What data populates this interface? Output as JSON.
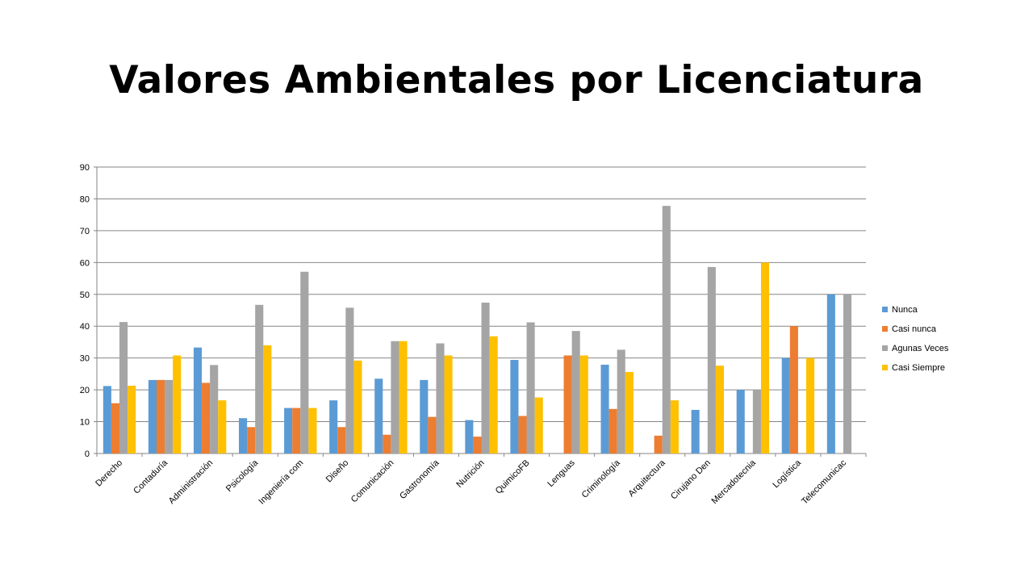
{
  "slide": {
    "title": "Valores Ambientales por Licenciatura"
  },
  "chart_data": {
    "type": "bar",
    "title": "",
    "xlabel": "",
    "ylabel": "",
    "ylim": [
      0,
      90
    ],
    "yticks": [
      0,
      10,
      20,
      30,
      40,
      50,
      60,
      70,
      80,
      90
    ],
    "grid": true,
    "legend_position": "right",
    "categories": [
      "Derecho",
      "Contaduría",
      "Administración",
      "Psicología",
      "Ingeniería com",
      "Diseño",
      "Comunicación",
      "Gastronomía",
      "Nutrición",
      "QuimicoFB",
      "Lenguas",
      "Criminología",
      "Arquitectura",
      "Cirujano Den",
      "Mercadotecnia",
      "Logística",
      "Telecomunicac"
    ],
    "series": [
      {
        "name": "Nunca",
        "color": "#5B9BD5",
        "values": [
          21.2,
          23.1,
          33.3,
          11.1,
          14.3,
          16.7,
          23.5,
          23.1,
          10.5,
          29.4,
          0,
          27.9,
          0,
          13.7,
          20,
          30,
          50
        ]
      },
      {
        "name": "Casi nunca",
        "color": "#ED7D31",
        "values": [
          15.8,
          23.1,
          22.2,
          8.3,
          14.3,
          8.3,
          5.9,
          11.5,
          5.3,
          11.8,
          30.8,
          14,
          5.6,
          0,
          0,
          40,
          0
        ]
      },
      {
        "name": "Agunas Veces",
        "color": "#A5A5A5",
        "values": [
          41.3,
          23.1,
          27.8,
          46.7,
          57.1,
          45.8,
          35.3,
          34.6,
          47.4,
          41.2,
          38.5,
          32.6,
          77.8,
          58.6,
          20,
          0,
          50
        ]
      },
      {
        "name": "Casi Siempre",
        "color": "#FFC000",
        "values": [
          21.3,
          30.8,
          16.7,
          34,
          14.3,
          29.2,
          35.3,
          30.8,
          36.8,
          17.6,
          30.8,
          25.6,
          16.7,
          27.6,
          60,
          30,
          0
        ]
      }
    ]
  }
}
